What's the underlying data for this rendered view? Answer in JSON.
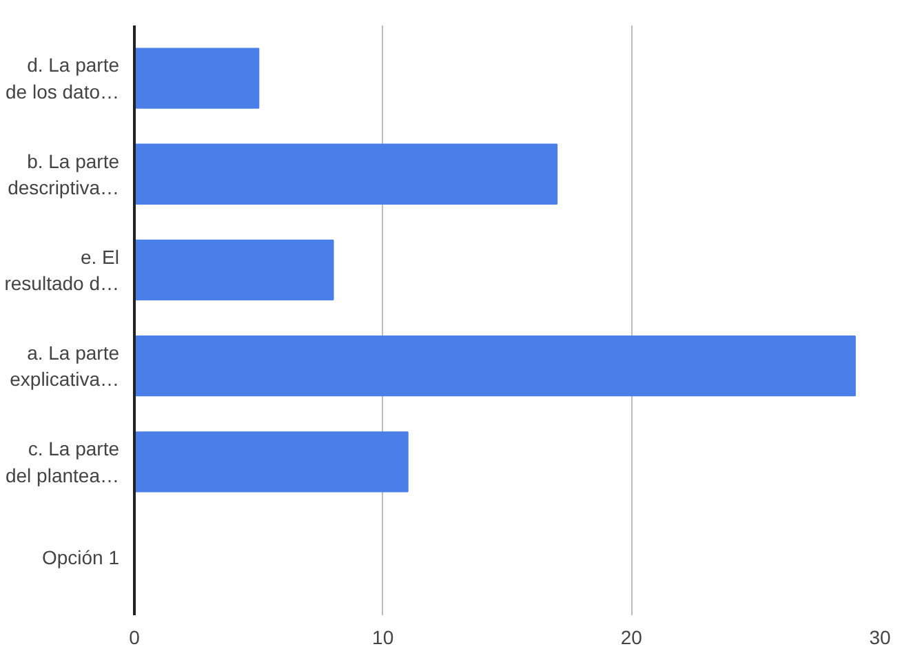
{
  "chart_data": {
    "type": "bar",
    "orientation": "horizontal",
    "categories": [
      "d. La parte de los dato…",
      "b. La parte descriptiva…",
      "e. El resultado d…",
      "a. La parte explicativa…",
      "c. La parte del plantea…",
      "Opción 1"
    ],
    "values": [
      5,
      17,
      8,
      29,
      11,
      0
    ],
    "color": "#4a7ee8",
    "xlim": [
      0,
      30
    ],
    "xticks": [
      0,
      10,
      20,
      30
    ],
    "grid": "x"
  }
}
